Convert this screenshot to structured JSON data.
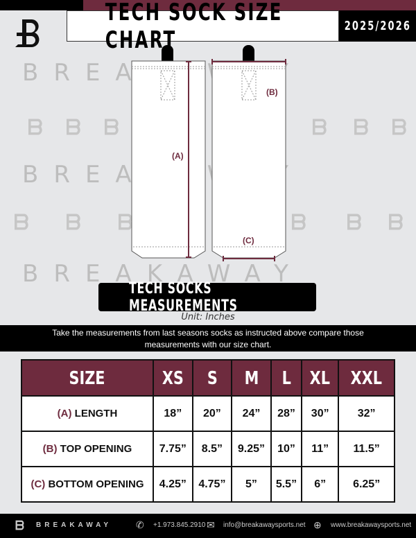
{
  "header": {
    "title": "TECH SOCK SIZE CHART",
    "season": "2025/2026",
    "logo": "B-logo"
  },
  "watermark": "BREAKAWAY",
  "diagram": {
    "label_a": "(A)",
    "label_b": "(B)",
    "label_c": "(C)"
  },
  "section": {
    "title": "TECH SOCKS MEASUREMENTS",
    "unit": "Unit: Inches",
    "instructions": "Take the measurements from last seasons socks as instructed above compare those measurements  with our size chart."
  },
  "table": {
    "headers": [
      "SIZE",
      "XS",
      "S",
      "M",
      "L",
      "XL",
      "XXL"
    ],
    "rows": [
      {
        "code": "(A)",
        "label": "LENGTH",
        "values": [
          "18”",
          "20”",
          "24”",
          "28”",
          "30”",
          "32”"
        ]
      },
      {
        "code": "(B)",
        "label": "TOP OPENING",
        "values": [
          "7.75”",
          "8.5”",
          "9.25”",
          "10”",
          "11”",
          "11.5”"
        ]
      },
      {
        "code": "(C)",
        "label": "BOTTOM OPENING",
        "values": [
          "4.25”",
          "4.75”",
          "5”",
          "5.5”",
          "6”",
          "6.25”"
        ]
      }
    ]
  },
  "footer": {
    "brand": "BREAKAWAY",
    "phone": "+1.973.845.2910",
    "email": "info@breakawaysports.net",
    "website": "www.breakawaysports.net"
  },
  "colors": {
    "maroon": "#6e2b3e",
    "black": "#000000",
    "background": "#e6e7e9"
  }
}
